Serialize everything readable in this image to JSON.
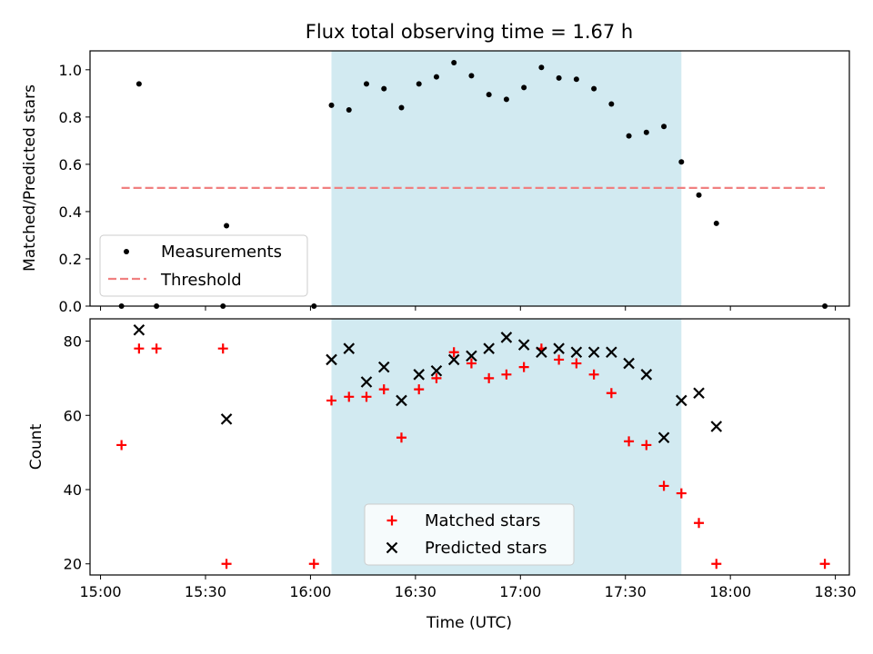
{
  "chart_data": [
    {
      "type": "scatter",
      "title": "Flux total observing time = 1.67 h",
      "xlabel": "",
      "ylabel": "Matched/Predicted stars",
      "xlim": [
        "14:57",
        "18:34"
      ],
      "ylim": [
        0,
        1.08
      ],
      "xticks": [
        "15:00",
        "15:30",
        "16:00",
        "16:30",
        "17:00",
        "17:30",
        "18:00",
        "18:30"
      ],
      "yticks": [
        "0.0",
        "0.2",
        "0.4",
        "0.6",
        "0.8",
        "1.0"
      ],
      "grid": false,
      "legend": {
        "position": "lower-left",
        "entries": [
          "Measurements",
          "Threshold"
        ]
      },
      "shaded_interval": {
        "x": [
          "16:06",
          "17:46"
        ],
        "color": "#add8e6"
      },
      "threshold": {
        "name": "Threshold",
        "y": 0.5,
        "x": [
          "15:06",
          "18:27"
        ],
        "color": "#f08080",
        "style": "dashed"
      },
      "series": [
        {
          "name": "Measurements",
          "color": "#000000",
          "marker": "dot",
          "points": [
            [
              "15:06",
              0.0
            ],
            [
              "15:11",
              0.94
            ],
            [
              "15:16",
              0.0
            ],
            [
              "15:35",
              0.0
            ],
            [
              "15:36",
              0.34
            ],
            [
              "16:01",
              0.0
            ],
            [
              "16:06",
              0.85
            ],
            [
              "16:11",
              0.83
            ],
            [
              "16:16",
              0.94
            ],
            [
              "16:21",
              0.92
            ],
            [
              "16:26",
              0.84
            ],
            [
              "16:31",
              0.94
            ],
            [
              "16:36",
              0.97
            ],
            [
              "16:41",
              1.03
            ],
            [
              "16:46",
              0.975
            ],
            [
              "16:51",
              0.895
            ],
            [
              "16:56",
              0.875
            ],
            [
              "17:01",
              0.925
            ],
            [
              "17:06",
              1.01
            ],
            [
              "17:11",
              0.965
            ],
            [
              "17:16",
              0.96
            ],
            [
              "17:21",
              0.92
            ],
            [
              "17:26",
              0.855
            ],
            [
              "17:31",
              0.72
            ],
            [
              "17:36",
              0.735
            ],
            [
              "17:41",
              0.76
            ],
            [
              "17:46",
              0.61
            ],
            [
              "17:51",
              0.47
            ],
            [
              "17:56",
              0.35
            ],
            [
              "18:27",
              0.0
            ]
          ]
        }
      ]
    },
    {
      "type": "scatter",
      "title": "",
      "xlabel": "Time (UTC)",
      "ylabel": "Count",
      "xlim": [
        "14:57",
        "18:34"
      ],
      "ylim": [
        17,
        86
      ],
      "xticks": [
        "15:00",
        "15:30",
        "16:00",
        "16:30",
        "17:00",
        "17:30",
        "18:00",
        "18:30"
      ],
      "yticks": [
        "20",
        "40",
        "60",
        "80"
      ],
      "grid": false,
      "legend": {
        "position": "lower-center",
        "entries": [
          "Matched stars",
          "Predicted stars"
        ]
      },
      "shaded_interval": {
        "x": [
          "16:06",
          "17:46"
        ],
        "color": "#add8e6"
      },
      "series": [
        {
          "name": "Matched stars",
          "color": "#ff0000",
          "marker": "plus",
          "points": [
            [
              "15:06",
              52
            ],
            [
              "15:11",
              78
            ],
            [
              "15:16",
              78
            ],
            [
              "15:35",
              78
            ],
            [
              "15:36",
              20
            ],
            [
              "16:01",
              20
            ],
            [
              "16:06",
              64
            ],
            [
              "16:11",
              65
            ],
            [
              "16:16",
              65
            ],
            [
              "16:21",
              67
            ],
            [
              "16:26",
              54
            ],
            [
              "16:31",
              67
            ],
            [
              "16:36",
              70
            ],
            [
              "16:41",
              77
            ],
            [
              "16:46",
              74
            ],
            [
              "16:51",
              70
            ],
            [
              "16:56",
              71
            ],
            [
              "17:01",
              73
            ],
            [
              "17:06",
              78
            ],
            [
              "17:11",
              75
            ],
            [
              "17:16",
              74
            ],
            [
              "17:21",
              71
            ],
            [
              "17:26",
              66
            ],
            [
              "17:31",
              53
            ],
            [
              "17:36",
              52
            ],
            [
              "17:41",
              41
            ],
            [
              "17:46",
              39
            ],
            [
              "17:51",
              31
            ],
            [
              "17:56",
              20
            ],
            [
              "18:27",
              20
            ]
          ]
        },
        {
          "name": "Predicted stars",
          "color": "#000000",
          "marker": "x",
          "points": [
            [
              "15:11",
              83
            ],
            [
              "15:36",
              59
            ],
            [
              "16:06",
              75
            ],
            [
              "16:11",
              78
            ],
            [
              "16:16",
              69
            ],
            [
              "16:21",
              73
            ],
            [
              "16:26",
              64
            ],
            [
              "16:31",
              71
            ],
            [
              "16:36",
              72
            ],
            [
              "16:41",
              75
            ],
            [
              "16:46",
              76
            ],
            [
              "16:51",
              78
            ],
            [
              "16:56",
              81
            ],
            [
              "17:01",
              79
            ],
            [
              "17:06",
              77
            ],
            [
              "17:11",
              78
            ],
            [
              "17:16",
              77
            ],
            [
              "17:21",
              77
            ],
            [
              "17:26",
              77
            ],
            [
              "17:31",
              74
            ],
            [
              "17:36",
              71
            ],
            [
              "17:41",
              54
            ],
            [
              "17:46",
              64
            ],
            [
              "17:51",
              66
            ],
            [
              "17:56",
              57
            ]
          ]
        }
      ]
    }
  ]
}
